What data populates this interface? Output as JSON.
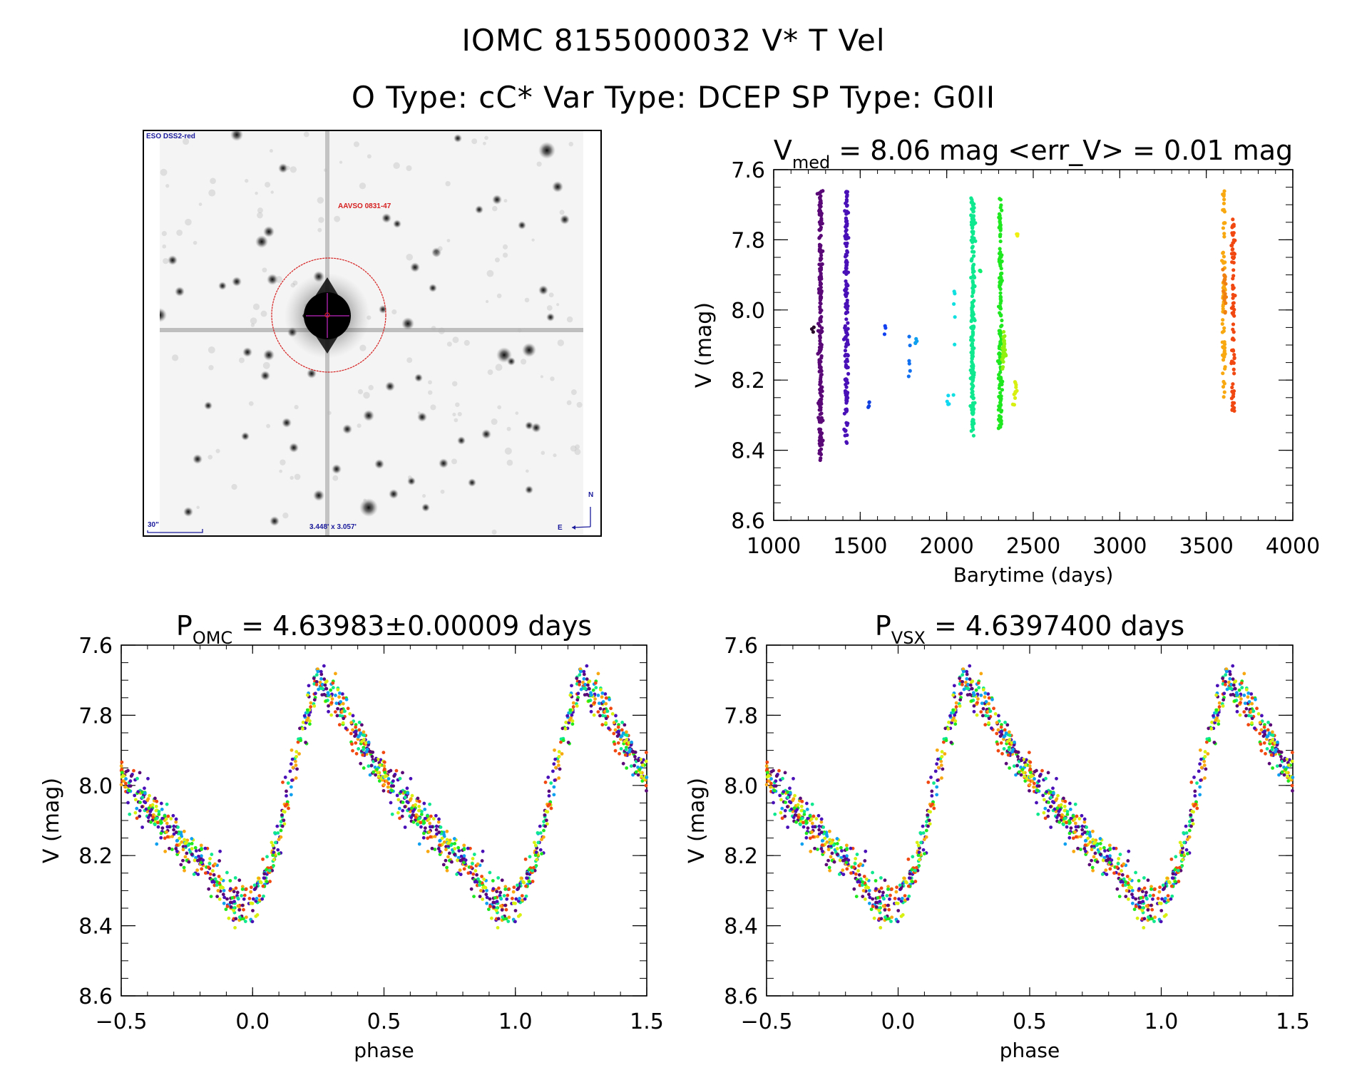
{
  "header": {
    "line1": "IOMC 8155000032    V* T Vel",
    "line2": "O Type: cC*  Var Type: DCEP  SP Type: G0II"
  },
  "image_panel": {
    "survey_label": "ESO DSS2-red",
    "target_label": "AAVSO 0831-47",
    "scale_label": "30\"",
    "fov_label": "3.448' x 3.057'",
    "north_label": "N",
    "east_label": "E",
    "circle_color": "#d62020",
    "crosshair_color": "#a020a0"
  },
  "chart_data": [
    {
      "id": "lightcurve",
      "type": "scatter",
      "title_main": "V",
      "title_sub": "med",
      "title_rest": " = 8.06 mag <err_V> = 0.01 mag",
      "xlabel": "Barytime (days)",
      "ylabel": "V (mag)",
      "xlim": [
        1000,
        4000
      ],
      "ylim": [
        8.6,
        7.6
      ],
      "y_inverted": true,
      "xticks": [
        1000,
        1500,
        2000,
        2500,
        3000,
        3500,
        4000
      ],
      "xtick_labels": [
        "1000",
        "1500",
        "2000",
        "2500",
        "3000",
        "3500",
        "4000"
      ],
      "yticks": [
        7.6,
        7.8,
        8.0,
        8.2,
        8.4,
        8.6
      ],
      "ytick_labels": [
        "7.6",
        "7.8",
        "8.0",
        "8.2",
        "8.4",
        "8.6"
      ],
      "grid": false,
      "color_map": "rainbow-by-time",
      "groups": [
        {
          "x": 1230,
          "y_range": [
            8.04,
            8.07
          ],
          "n": 3,
          "color": "#2a0a2a"
        },
        {
          "x": 1270,
          "y_range": [
            7.66,
            8.43
          ],
          "n": 220,
          "color": "#5a0878"
        },
        {
          "x": 1420,
          "y_range": [
            7.66,
            8.38
          ],
          "n": 160,
          "color": "#4a10b8"
        },
        {
          "x": 1545,
          "y_range": [
            8.26,
            8.28
          ],
          "n": 4,
          "color": "#1040e0"
        },
        {
          "x": 1640,
          "y_range": [
            7.99,
            8.07
          ],
          "n": 3,
          "color": "#1040f0"
        },
        {
          "x": 1785,
          "y_range": [
            8.06,
            8.19
          ],
          "n": 6,
          "color": "#1070f0"
        },
        {
          "x": 1820,
          "y_range": [
            8.08,
            8.1
          ],
          "n": 4,
          "color": "#10a0f0"
        },
        {
          "x": 2010,
          "y_range": [
            8.24,
            8.27
          ],
          "n": 4,
          "color": "#10d8f0"
        },
        {
          "x": 2045,
          "y_range": [
            7.93,
            8.31
          ],
          "n": 6,
          "color": "#10e0e0"
        },
        {
          "x": 2150,
          "y_range": [
            7.68,
            8.36
          ],
          "n": 200,
          "color": "#10e890"
        },
        {
          "x": 2190,
          "y_range": [
            7.88,
            7.89
          ],
          "n": 3,
          "color": "#10f070"
        },
        {
          "x": 2310,
          "y_range": [
            7.68,
            8.34
          ],
          "n": 170,
          "color": "#20e820"
        },
        {
          "x": 2330,
          "y_range": [
            8.06,
            8.17
          ],
          "n": 30,
          "color": "#90f010"
        },
        {
          "x": 2395,
          "y_range": [
            8.2,
            8.28
          ],
          "n": 12,
          "color": "#d8f010"
        },
        {
          "x": 2410,
          "y_range": [
            7.78,
            7.79
          ],
          "n": 3,
          "color": "#f0f010"
        },
        {
          "x": 3600,
          "y_range": [
            7.66,
            8.25
          ],
          "n": 70,
          "color": "#f8a810"
        },
        {
          "x": 3605,
          "y_range": [
            7.88,
            8.02
          ],
          "n": 20,
          "color": "#f08010"
        },
        {
          "x": 3655,
          "y_range": [
            7.74,
            8.31
          ],
          "n": 80,
          "color": "#f04810"
        }
      ]
    },
    {
      "id": "phase_omc",
      "type": "scatter",
      "title_main": "P",
      "title_sub": "OMC",
      "title_rest": " = 4.63983±0.00009 days",
      "period_days": 4.63983,
      "period_err": 9e-05,
      "xlabel": "phase",
      "ylabel": "V (mag)",
      "xlim": [
        -0.5,
        1.5
      ],
      "ylim": [
        8.6,
        7.6
      ],
      "y_inverted": true,
      "xticks": [
        -0.5,
        0.0,
        0.5,
        1.0,
        1.5
      ],
      "xtick_labels": [
        "−0.5",
        "0.0",
        "0.5",
        "1.0",
        "1.5"
      ],
      "yticks": [
        7.6,
        7.8,
        8.0,
        8.2,
        8.4,
        8.6
      ],
      "ytick_labels": [
        "7.6",
        "7.8",
        "8.0",
        "8.2",
        "8.4",
        "8.6"
      ],
      "grid": false,
      "template_curve": {
        "phase": [
          0.0,
          0.05,
          0.1,
          0.15,
          0.2,
          0.25,
          0.3,
          0.35,
          0.4,
          0.45,
          0.5,
          0.55,
          0.6,
          0.65,
          0.7,
          0.75,
          0.8,
          0.85,
          0.9,
          0.95,
          1.0
        ],
        "mag": [
          8.33,
          8.27,
          8.14,
          7.97,
          7.8,
          7.7,
          7.74,
          7.8,
          7.86,
          7.92,
          7.97,
          8.02,
          8.06,
          8.1,
          8.14,
          8.18,
          8.21,
          8.25,
          8.3,
          8.34,
          8.33
        ]
      },
      "scatter_mag": 0.03,
      "colors": [
        "#5a0878",
        "#4a10b8",
        "#10e890",
        "#20e820",
        "#f04810",
        "#f8a810",
        "#10a0f0",
        "#d8f010"
      ]
    },
    {
      "id": "phase_vsx",
      "type": "scatter",
      "title_main": "P",
      "title_sub": "VSX",
      "title_rest": " = 4.6397400 days",
      "period_days": 4.63974,
      "xlabel": "phase",
      "ylabel": "V (mag)",
      "xlim": [
        -0.5,
        1.5
      ],
      "ylim": [
        8.6,
        7.6
      ],
      "y_inverted": true,
      "xticks": [
        -0.5,
        0.0,
        0.5,
        1.0,
        1.5
      ],
      "xtick_labels": [
        "−0.5",
        "0.0",
        "0.5",
        "1.0",
        "1.5"
      ],
      "yticks": [
        7.6,
        7.8,
        8.0,
        8.2,
        8.4,
        8.6
      ],
      "ytick_labels": [
        "7.6",
        "7.8",
        "8.0",
        "8.2",
        "8.4",
        "8.6"
      ],
      "grid": false,
      "template_curve": {
        "phase": [
          0.0,
          0.05,
          0.1,
          0.15,
          0.2,
          0.25,
          0.3,
          0.35,
          0.4,
          0.45,
          0.5,
          0.55,
          0.6,
          0.65,
          0.7,
          0.75,
          0.8,
          0.85,
          0.9,
          0.95,
          1.0
        ],
        "mag": [
          8.33,
          8.27,
          8.14,
          7.97,
          7.8,
          7.7,
          7.74,
          7.8,
          7.86,
          7.92,
          7.97,
          8.02,
          8.06,
          8.1,
          8.14,
          8.18,
          8.21,
          8.25,
          8.3,
          8.34,
          8.33
        ]
      },
      "scatter_mag": 0.03,
      "colors": [
        "#5a0878",
        "#4a10b8",
        "#10e890",
        "#20e820",
        "#f04810",
        "#f8a810",
        "#10a0f0",
        "#d8f010"
      ]
    }
  ]
}
